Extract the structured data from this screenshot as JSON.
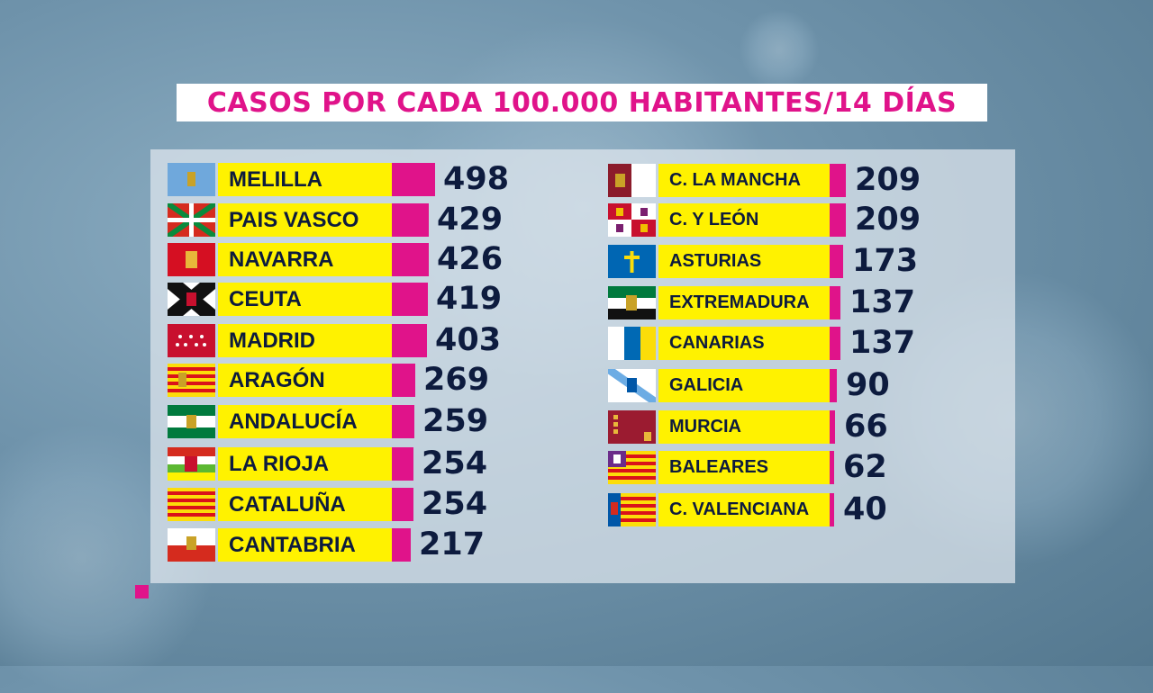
{
  "chart_data": {
    "type": "bar",
    "title": "CASOS POR CADA 100.000 HABITANTES/14 DÍAS",
    "series": [
      {
        "categories": [
          "MELILLA",
          "PAIS VASCO",
          "NAVARRA",
          "CEUTA",
          "MADRID",
          "ARAGÓN",
          "ANDALUCÍA",
          "LA RIOJA",
          "CATALUÑA",
          "CANTABRIA"
        ],
        "values": [
          498,
          429,
          426,
          419,
          403,
          269,
          259,
          254,
          254,
          217
        ]
      },
      {
        "categories": [
          "C. LA MANCHA",
          "C. Y LEÓN",
          "ASTURIAS",
          "EXTREMADURA",
          "CANARIAS",
          "GALICIA",
          "MURCIA",
          "BALEARES",
          "C. VALENCIANA"
        ],
        "values": [
          209,
          209,
          173,
          137,
          137,
          90,
          66,
          62,
          40
        ]
      }
    ]
  },
  "colors": {
    "bar": "#e0138a",
    "label_bg": "#fff200",
    "text": "#0d1b3e",
    "title": "#e0138a"
  },
  "flag_icons": [
    "melilla-flag-icon",
    "pais-vasco-flag-icon",
    "navarra-flag-icon",
    "ceuta-flag-icon",
    "madrid-flag-icon",
    "aragon-flag-icon",
    "andalucia-flag-icon",
    "la-rioja-flag-icon",
    "cataluna-flag-icon",
    "cantabria-flag-icon",
    "castilla-la-mancha-flag-icon",
    "castilla-y-leon-flag-icon",
    "asturias-flag-icon",
    "extremadura-flag-icon",
    "canarias-flag-icon",
    "galicia-flag-icon",
    "murcia-flag-icon",
    "baleares-flag-icon",
    "valencia-flag-icon"
  ]
}
